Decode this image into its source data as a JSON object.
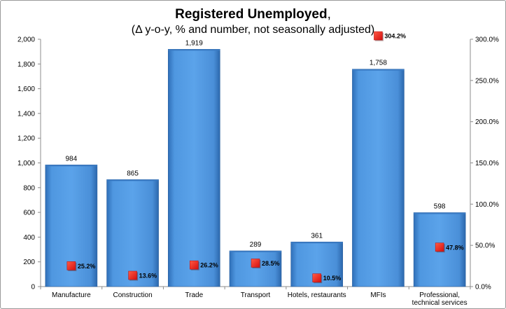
{
  "title": {
    "main": "Registered Unemployed",
    "main_suffix": ",",
    "subtitle": "(Δ y-o-y, % and number, not seasonally adjusted)"
  },
  "chart_data": {
    "type": "bar",
    "title": "Registered Unemployed, (Δ y-o-y, % and number, not seasonally adjusted)",
    "categories": [
      [
        "Manufacture"
      ],
      [
        "Construction"
      ],
      [
        "Trade"
      ],
      [
        "Transport"
      ],
      [
        "Hotels, restaurants"
      ],
      [
        "MFIs"
      ],
      [
        "Professional,",
        "technical services"
      ]
    ],
    "series": [
      {
        "values": [
          984,
          865,
          1919,
          289,
          361,
          1758,
          598
        ],
        "labels": [
          "984",
          "865",
          "1,919",
          "289",
          "361",
          "1,758",
          "598"
        ],
        "axis": "left",
        "color": "#4a90d9"
      },
      {
        "values": [
          25.2,
          13.6,
          26.2,
          28.5,
          10.5,
          304.2,
          47.8
        ],
        "labels": [
          "25.2%",
          "13.6%",
          "26.2%",
          "28.5%",
          "10.5%",
          "304.2%",
          "47.8%"
        ],
        "axis": "right",
        "marker": "square",
        "color": "#ee1c1c"
      }
    ],
    "ylim": [
      0,
      2000
    ],
    "y_ticks": [
      "0",
      "200",
      "400",
      "600",
      "800",
      "1,000",
      "1,200",
      "1,400",
      "1,600",
      "1,800",
      "2,000"
    ],
    "y2lim": [
      0,
      300
    ],
    "y2_ticks": [
      "0.0%",
      "50.0%",
      "100.0%",
      "150.0%",
      "200.0%",
      "250.0%",
      "300.0%"
    ],
    "grid": false,
    "legend": "none"
  }
}
